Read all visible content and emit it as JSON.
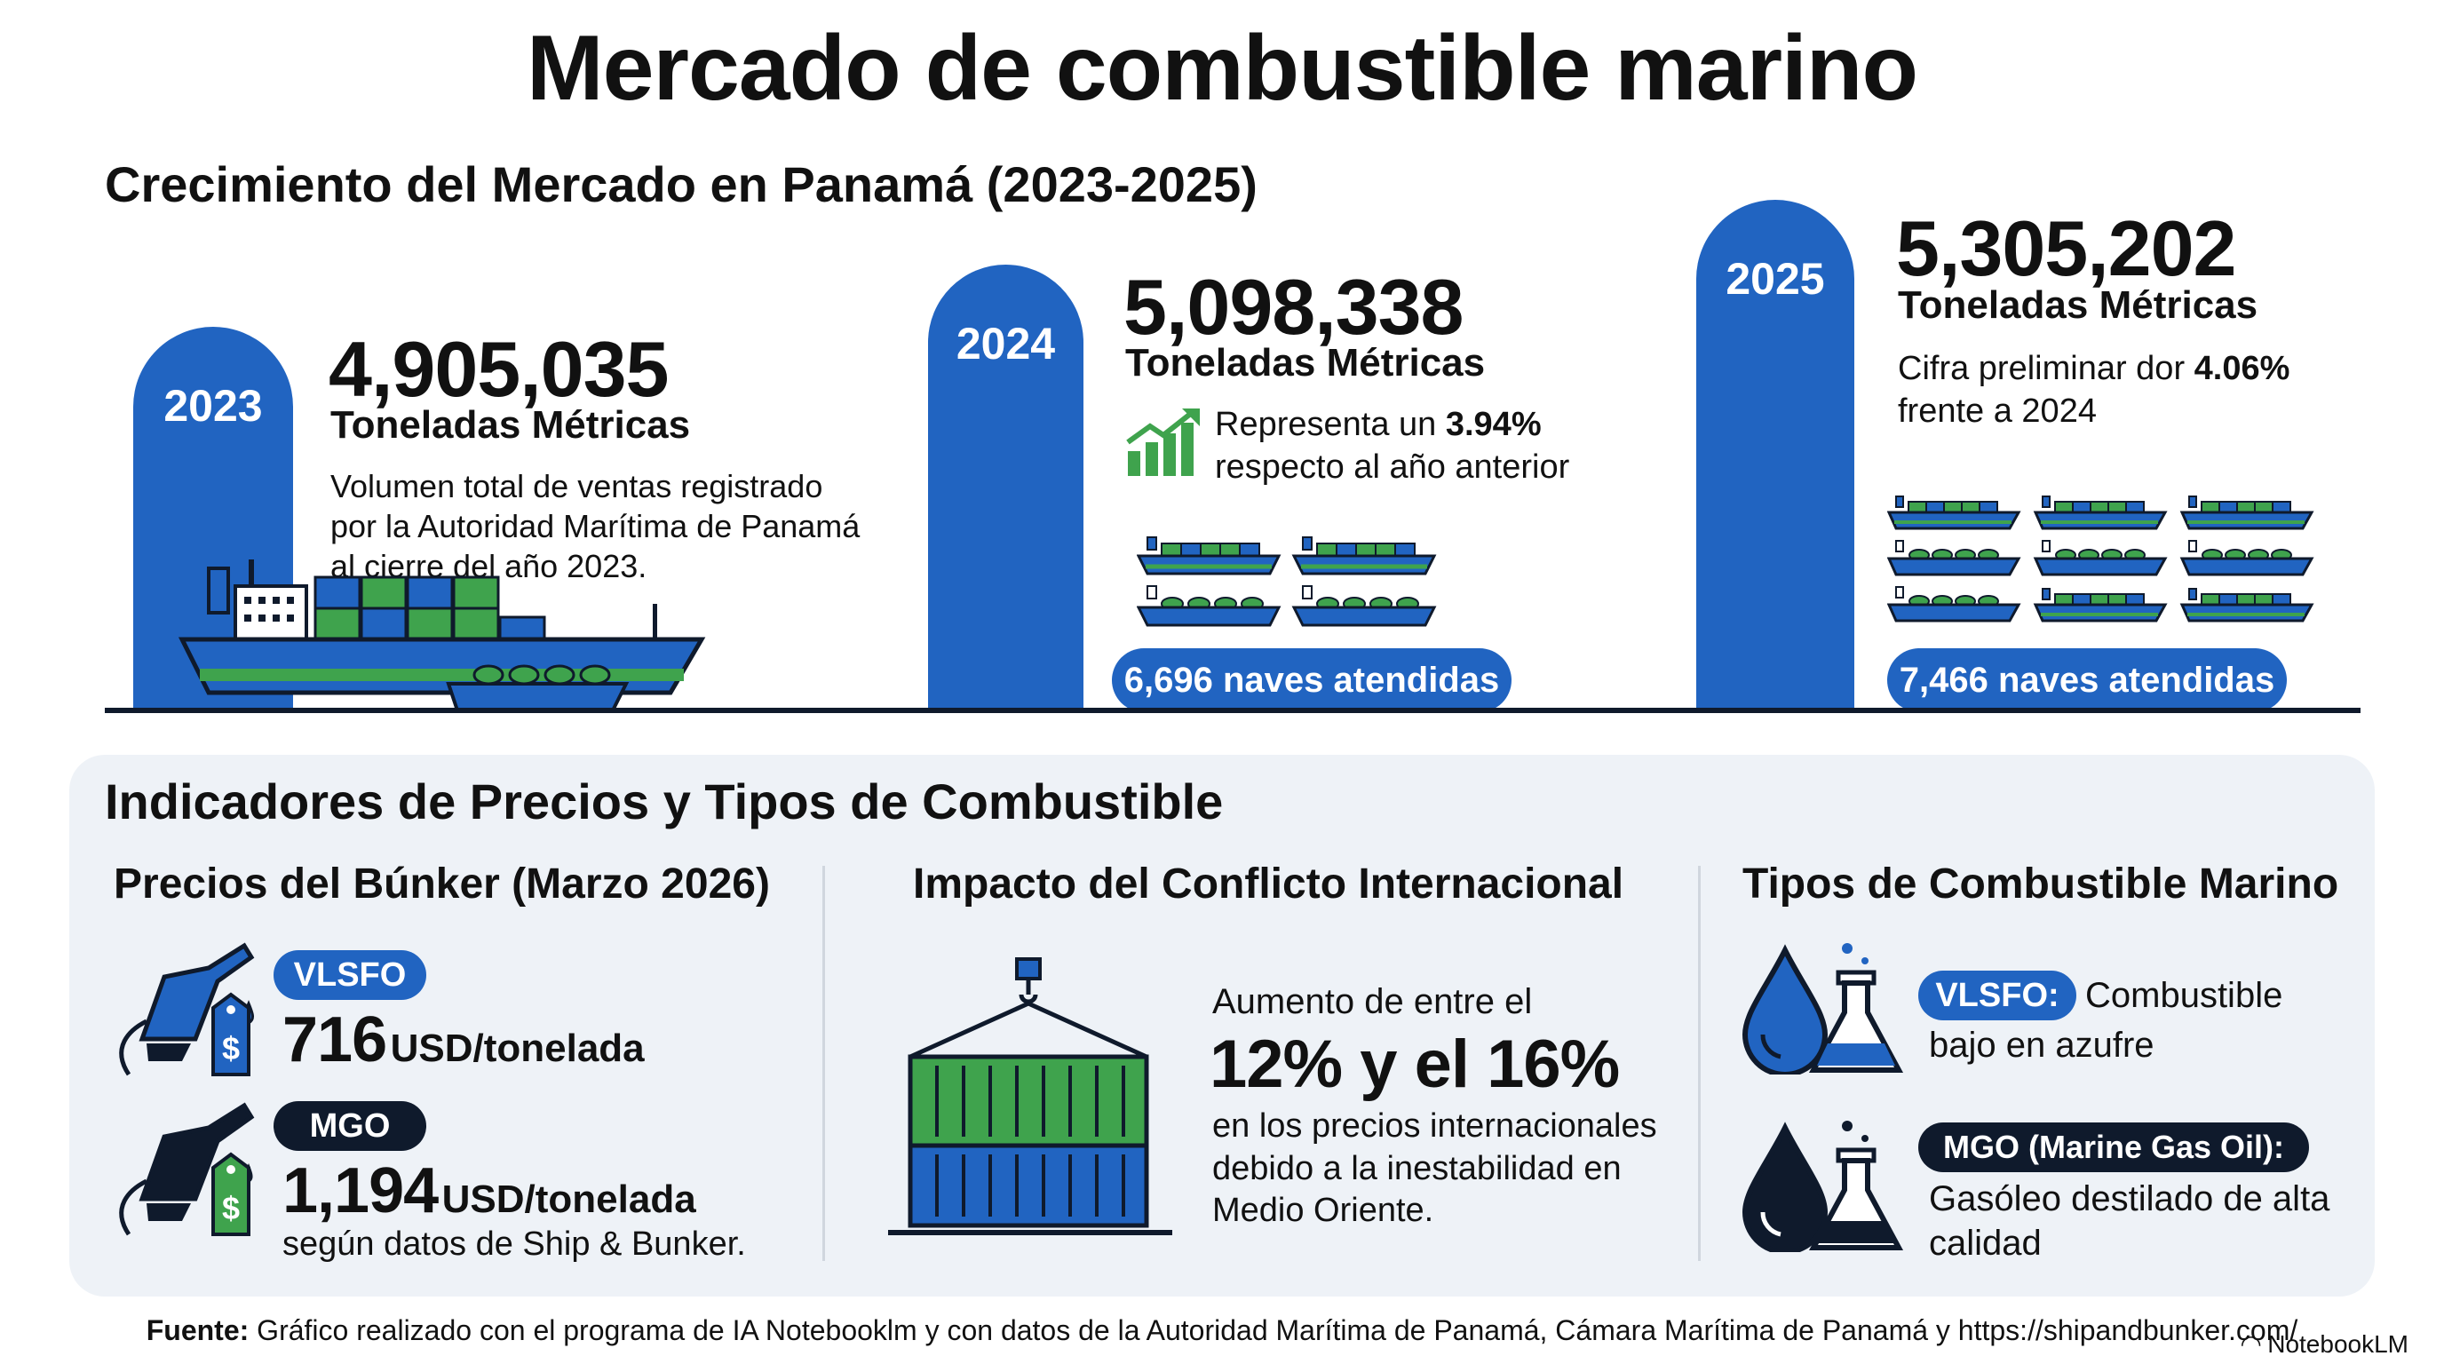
{
  "title": "Mercado de combustible marino",
  "growth": {
    "subtitle": "Crecimiento del Mercado en Panamá (2023-2025)",
    "y2023": {
      "year": "2023",
      "value": "4,905,035",
      "unit": "Toneladas Métricas",
      "description": "Volumen total de ventas registrado por la Autoridad Marítima de Panamá al cierre del año 2023."
    },
    "y2024": {
      "year": "2024",
      "value": "5,098,338",
      "unit": "Toneladas Métricas",
      "change_prefix": "Representa un",
      "change_pct": "3.94%",
      "change_suffix": "respecto al año anterior",
      "ships": "6,696 naves atendidas"
    },
    "y2025": {
      "year": "2025",
      "value": "5,305,202",
      "unit": "Toneladas Métricas",
      "change_prefix": "Cifra preliminar dor",
      "change_pct": "4.06%",
      "change_suffix": "frente a 2024",
      "ships": "7,466 naves atendidas"
    }
  },
  "indicators": {
    "title": "Indicadores de Precios y Tipos de Combustible",
    "prices": {
      "title": "Precios del Búnker (Marzo 2026)",
      "vlsfo_tag": "VLSFO",
      "vlsfo_value": "716",
      "vlsfo_unit": "USD/tonelada",
      "mgo_tag": "MGO",
      "mgo_value": "1,194",
      "mgo_unit": "USD/tonelada",
      "source_note": "según datos de Ship & Bunker."
    },
    "conflict": {
      "title": "Impacto del Conflicto Internacional",
      "lead": "Aumento de entre el",
      "range": "12% y el 16%",
      "text": "en los precios internacionales debido a la inestabilidad en Medio Oriente."
    },
    "fuel_types": {
      "title": "Tipos de Combustible Marino",
      "vlsfo_tag": "VLSFO:",
      "vlsfo_desc_1": "Combustible",
      "vlsfo_desc_2": "bajo en azufre",
      "mgo_tag": "MGO (Marine Gas Oil):",
      "mgo_desc": "Gasóleo destilado de alta calidad"
    }
  },
  "footer": {
    "label": "Fuente:",
    "text": "Gráfico realizado con el programa de IA Notebooklm y con datos de la Autoridad Marítima de Panamá, Cámara Marítima de Panamá y https://shipandbunker.com/",
    "brand": "NotebookLM"
  },
  "colors": {
    "blue": "#2164c1",
    "green": "#3fa34d",
    "navy": "#0f1a2c",
    "panel": "#eef2f7"
  },
  "icons": [
    "fuel-nozzle-icon",
    "price-tag-icon",
    "growth-chart-icon",
    "cargo-ship-icon",
    "container-crane-icon",
    "oil-drop-icon",
    "flask-icon"
  ]
}
